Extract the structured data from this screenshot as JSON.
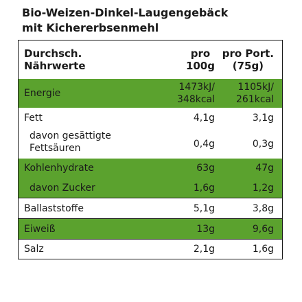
{
  "title_lines": [
    "Bio-Weizen-Dinkel-Laugengebäck",
    "mit Kichererbsenmehl"
  ],
  "header": {
    "col1_lines": [
      "Durchsch.",
      "Nährwerte"
    ],
    "col2_lines": [
      "pro",
      "100g"
    ],
    "col3_lines": [
      "pro Port.",
      "(75g)"
    ]
  },
  "rows": [
    {
      "label": "Energie",
      "v100_lines": [
        "1473kJ/",
        "348kcal"
      ],
      "vport_lines": [
        "1105kJ/",
        "261kcal"
      ]
    },
    {
      "label": "Fett",
      "v100": "4,1g",
      "vport": "3,1g"
    },
    {
      "label_lines": [
        "davon gesättigte",
        "Fettsäuren"
      ],
      "v100": "0,4g",
      "vport": "0,3g"
    },
    {
      "label": "Kohlenhydrate",
      "v100": "63g",
      "vport": "47g"
    },
    {
      "label": "davon Zucker",
      "v100": "1,6g",
      "vport": "1,2g"
    },
    {
      "label": "Ballaststoffe",
      "v100": "5,1g",
      "vport": "3,8g"
    },
    {
      "label": "Eiweiß",
      "v100": "13g",
      "vport": "9,6g"
    },
    {
      "label": "Salz",
      "v100": "2,1g",
      "vport": "1,6g"
    }
  ],
  "colors": {
    "highlight": "#5ba22e",
    "border": "#1a1a1a"
  }
}
